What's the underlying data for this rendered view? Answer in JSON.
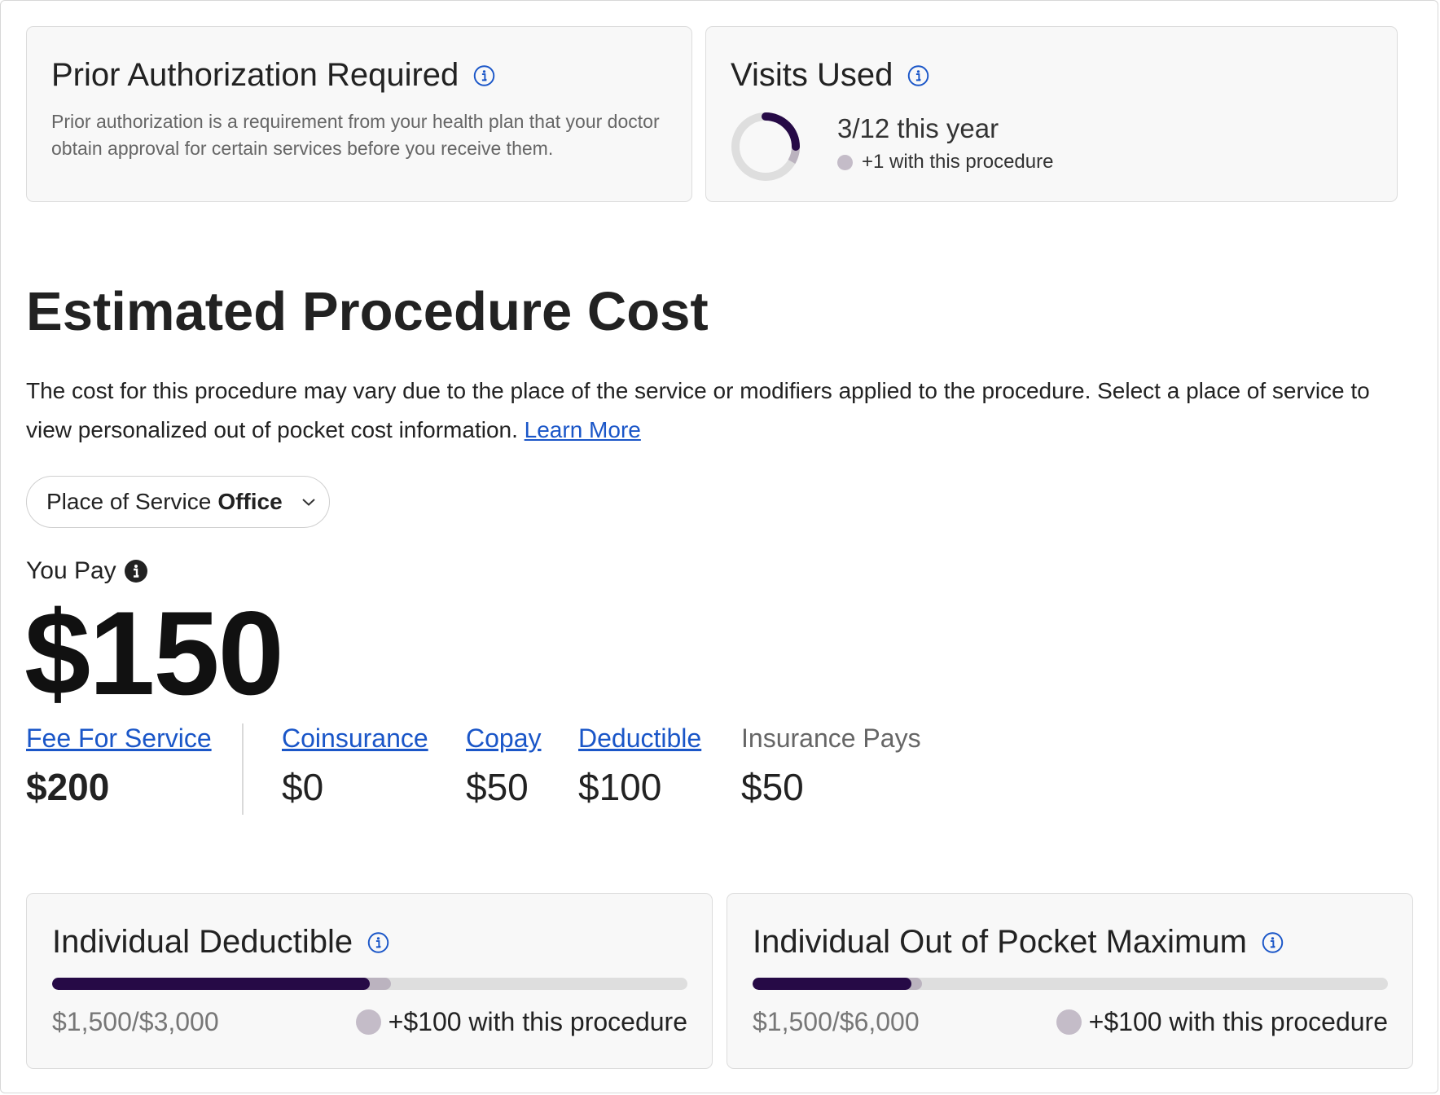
{
  "prior_auth": {
    "title": "Prior Authorization Required",
    "description": "Prior authorization is a requirement from your health plan that your doctor obtain approval for certain services before you receive them."
  },
  "visits": {
    "title": "Visits Used",
    "count_text": "3/12 this year",
    "extra_text": "+1 with this procedure",
    "used": 3,
    "pending": 1,
    "total": 12
  },
  "estimate": {
    "title": "Estimated Procedure Cost",
    "description": "The cost for this procedure may vary due to the place of the service or modifiers applied to the procedure. Select a place of service to view personalized out of pocket cost information.",
    "learn_more": "Learn More",
    "place_label": "Place of Service",
    "place_value": "Office",
    "you_pay_label": "You Pay",
    "you_pay_amount": "$150"
  },
  "breakdown": {
    "fee": {
      "label": "Fee For Service",
      "value": "$200"
    },
    "coinsurance": {
      "label": "Coinsurance",
      "value": "$0"
    },
    "copay": {
      "label": "Copay",
      "value": "$50"
    },
    "deductible": {
      "label": "Deductible",
      "value": "$100"
    },
    "insurance": {
      "label": "Insurance Pays",
      "value": "$50"
    }
  },
  "deductible_card": {
    "title": "Individual Deductible",
    "amount_text": "$1,500/$3,000",
    "extra_text": "+$100 with this procedure",
    "used": 1500,
    "pending": 100,
    "total": 3000
  },
  "oop_card": {
    "title": "Individual Out of Pocket Maximum",
    "amount_text": "$1,500/$6,000",
    "extra_text": "+$100 with this procedure",
    "used": 1500,
    "pending": 100,
    "total": 6000
  },
  "colors": {
    "accent": "#260a46",
    "pending": "#bbb3bf",
    "track": "#dedede",
    "link": "#1a56c8"
  }
}
